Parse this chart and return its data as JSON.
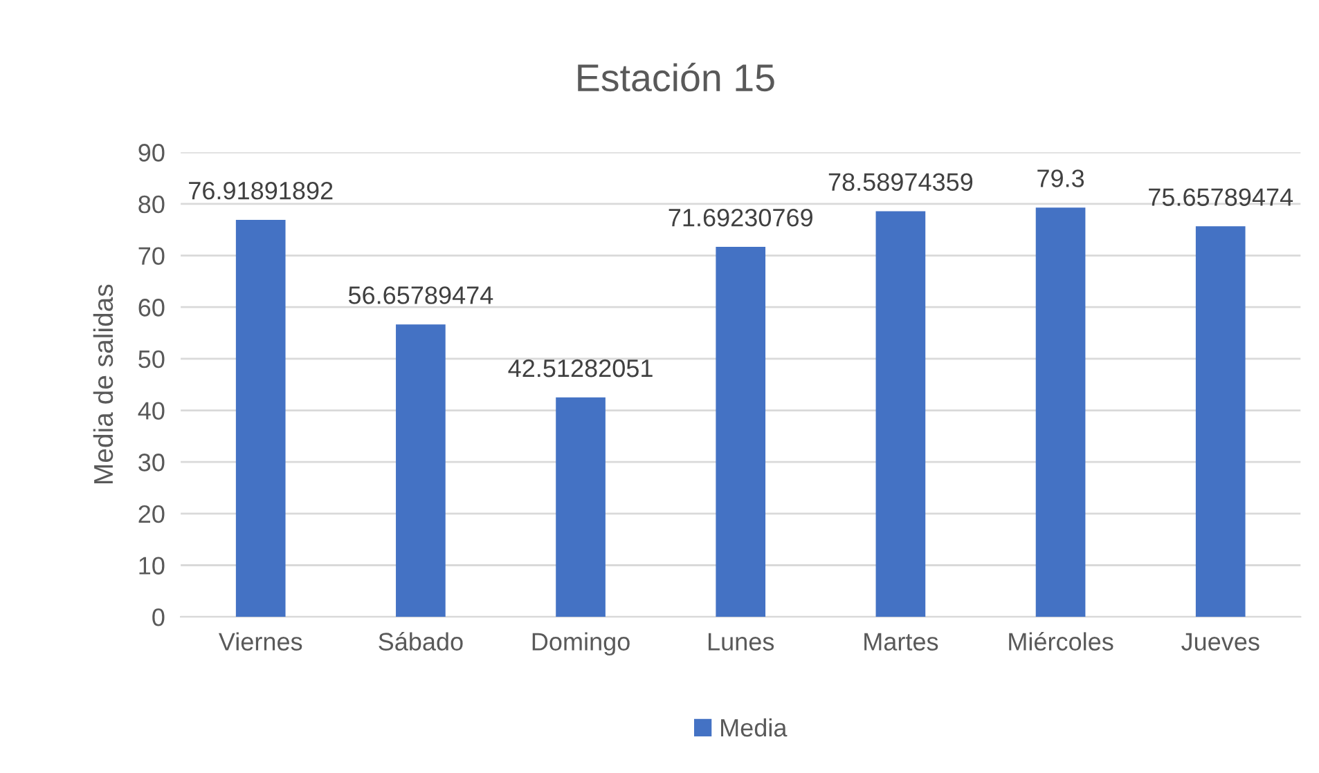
{
  "chart_data": {
    "type": "bar",
    "title": "Estación 15",
    "ylabel": "Media de salidas",
    "categories": [
      "Viernes",
      "Sábado",
      "Domingo",
      "Lunes",
      "Martes",
      "Miércoles",
      "Jueves"
    ],
    "series": [
      {
        "name": "Media",
        "color": "#4472c4",
        "values": [
          76.91891892,
          56.65789474,
          42.51282051,
          71.69230769,
          78.58974359,
          79.3,
          75.65789474
        ]
      }
    ],
    "ylim": [
      0,
      90
    ],
    "yticks": [
      0,
      10,
      20,
      30,
      40,
      50,
      60,
      70,
      80,
      90
    ],
    "grid": "y",
    "legend": "bottom",
    "data_labels": true
  }
}
